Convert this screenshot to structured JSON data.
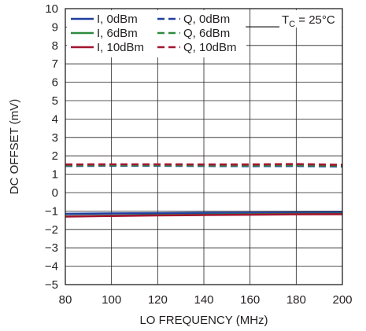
{
  "chart_data": {
    "type": "line",
    "xlabel": "LO FREQUENCY (MHz)",
    "ylabel": "DC OFFSET (mV)",
    "xlim": [
      80,
      200
    ],
    "ylim": [
      -5,
      10
    ],
    "x_ticks": [
      80,
      100,
      120,
      140,
      160,
      180,
      200
    ],
    "y_ticks": [
      -5,
      -4,
      -3,
      -2,
      -1,
      0,
      1,
      2,
      3,
      4,
      5,
      6,
      7,
      8,
      9,
      10
    ],
    "x_tick_labels": [
      "80",
      "100",
      "120",
      "140",
      "160",
      "180",
      "200"
    ],
    "y_tick_labels": [
      "−5",
      "−4",
      "−3",
      "−2",
      "−1",
      "0",
      "1",
      "2",
      "3",
      "4",
      "5",
      "6",
      "7",
      "8",
      "9",
      "10"
    ],
    "grid": true,
    "legend_position": "top-left",
    "annotation": {
      "main": "T",
      "subscript": "C",
      "rest": " = 25°C"
    },
    "series": [
      {
        "name": "I, 0dBm",
        "color": "#1f3f9f",
        "style": "solid",
        "x": [
          80,
          100,
          120,
          140,
          160,
          180,
          200
        ],
        "values": [
          -1.15,
          -1.13,
          -1.12,
          -1.1,
          -1.09,
          -1.08,
          -1.07
        ]
      },
      {
        "name": "Q, 0dBm",
        "color": "#1f3f9f",
        "style": "dashed",
        "x": [
          80,
          100,
          120,
          140,
          160,
          180,
          200
        ],
        "values": [
          1.45,
          1.46,
          1.46,
          1.45,
          1.44,
          1.45,
          1.42
        ]
      },
      {
        "name": "I, 6dBm",
        "color": "#2e8a3e",
        "style": "solid",
        "x": [
          80,
          100,
          120,
          140,
          160,
          180,
          200
        ],
        "values": [
          -1.28,
          -1.25,
          -1.22,
          -1.2,
          -1.18,
          -1.16,
          -1.15
        ]
      },
      {
        "name": "Q, 6dBm",
        "color": "#2e8a3e",
        "style": "dashed",
        "x": [
          80,
          100,
          120,
          140,
          160,
          180,
          200
        ],
        "values": [
          1.48,
          1.49,
          1.49,
          1.48,
          1.48,
          1.49,
          1.46
        ]
      },
      {
        "name": "I, 10dBm",
        "color": "#a3152f",
        "style": "solid",
        "x": [
          80,
          100,
          120,
          140,
          160,
          180,
          200
        ],
        "values": [
          -1.3,
          -1.27,
          -1.24,
          -1.22,
          -1.2,
          -1.18,
          -1.17
        ]
      },
      {
        "name": "Q, 10dBm",
        "color": "#a3152f",
        "style": "dashed",
        "x": [
          80,
          100,
          120,
          140,
          160,
          180,
          200
        ],
        "values": [
          1.53,
          1.54,
          1.54,
          1.53,
          1.53,
          1.55,
          1.51
        ]
      }
    ]
  }
}
